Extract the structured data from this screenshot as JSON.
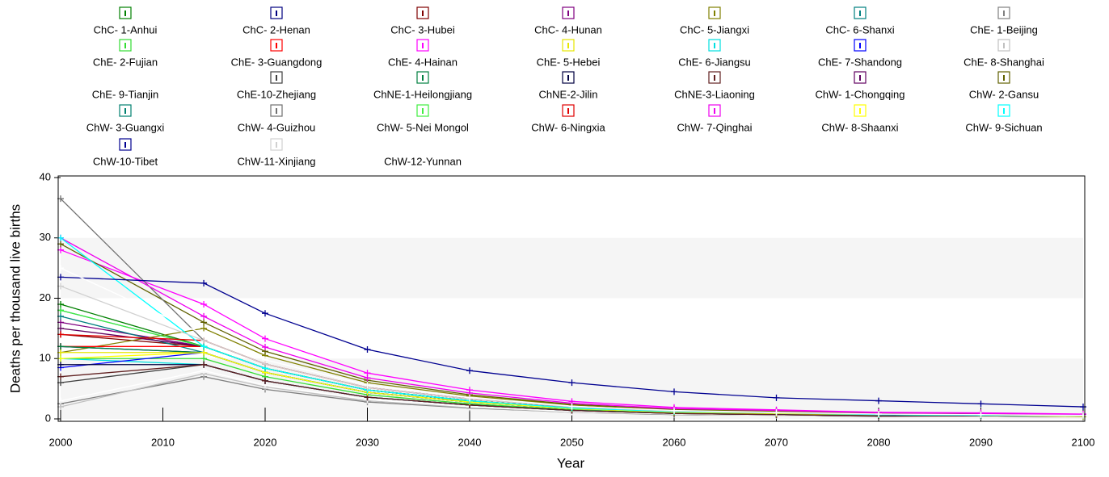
{
  "chart_data": {
    "type": "line",
    "x_label": "Year",
    "y_label": "Deaths per thousand live births",
    "xlim": [
      2000,
      2100
    ],
    "xticks": [
      2000,
      2010,
      2020,
      2030,
      2040,
      2050,
      2060,
      2070,
      2080,
      2090,
      2100
    ],
    "ylim": [
      0,
      40
    ],
    "yticks": [
      0,
      10,
      20,
      30,
      40
    ],
    "x": [
      2000,
      2014,
      2020,
      2030,
      2040,
      2050,
      2060,
      2070,
      2080,
      2090,
      2100
    ],
    "series": [
      {
        "name": "ChC- 1-Anhui",
        "color": "#008000",
        "values": [
          19,
          12,
          8.4,
          4.8,
          3,
          1.8,
          1.2,
          1,
          0.7,
          0.6,
          0.5
        ]
      },
      {
        "name": "ChC- 2-Henan",
        "color": "#000080",
        "values": [
          12,
          11,
          7.7,
          4.4,
          2.8,
          1.7,
          1.1,
          0.9,
          0.7,
          0.6,
          0.4
        ]
      },
      {
        "name": "ChC- 3-Hubei",
        "color": "#800000",
        "values": [
          14,
          12,
          8.4,
          4.8,
          3,
          1.8,
          1.2,
          1,
          0.7,
          0.6,
          0.5
        ]
      },
      {
        "name": "ChC- 4-Hunan",
        "color": "#800080",
        "values": [
          16,
          12,
          8.4,
          4.8,
          3,
          1.8,
          1.2,
          1,
          0.7,
          0.6,
          0.5
        ]
      },
      {
        "name": "ChC- 5-Jiangxi",
        "color": "#808000",
        "values": [
          11,
          15,
          10.5,
          6,
          3.8,
          2.3,
          1.5,
          1.2,
          0.9,
          0.8,
          0.6
        ]
      },
      {
        "name": "ChC- 6-Shanxi",
        "color": "#008080",
        "values": [
          17,
          11,
          7.7,
          4.4,
          2.8,
          1.7,
          1.1,
          0.9,
          0.7,
          0.6,
          0.4
        ]
      },
      {
        "name": "ChE- 1-Beijing",
        "color": "#808080",
        "values": [
          2.5,
          7,
          4.9,
          2.8,
          1.8,
          1.1,
          0.7,
          0.6,
          0.4,
          0.4,
          0.3
        ]
      },
      {
        "name": "ChE- 2-Fujian",
        "color": "#33dd33",
        "values": [
          10,
          10,
          7,
          4,
          2.5,
          1.5,
          1,
          0.8,
          0.6,
          0.5,
          0.4
        ]
      },
      {
        "name": "ChE- 3-Guangdong",
        "color": "#ff0000",
        "values": [
          12,
          12,
          8.4,
          4.8,
          3,
          1.8,
          1.2,
          1,
          0.7,
          0.6,
          0.5
        ]
      },
      {
        "name": "ChE- 4-Hainan",
        "color": "#ff00ff",
        "values": [
          28,
          19,
          13.3,
          7.6,
          4.8,
          2.9,
          1.9,
          1.5,
          1.1,
          1,
          0.8
        ]
      },
      {
        "name": "ChE- 5-Hebei",
        "color": "#e6e600",
        "values": [
          11,
          11,
          7.7,
          4.4,
          2.8,
          1.7,
          1.1,
          0.9,
          0.7,
          0.6,
          0.4
        ]
      },
      {
        "name": "ChE- 6-Jiangsu",
        "color": "#00e0e0",
        "values": [
          10,
          9,
          6.3,
          3.6,
          2.3,
          1.4,
          0.9,
          0.7,
          0.5,
          0.5,
          0.4
        ]
      },
      {
        "name": "ChE- 7-Shandong",
        "color": "#0000ff",
        "values": [
          8.5,
          11,
          7.7,
          4.4,
          2.8,
          1.7,
          1.1,
          0.9,
          0.7,
          0.6,
          0.4
        ]
      },
      {
        "name": "ChE- 8-Shanghai",
        "color": "#c0c0c0",
        "values": [
          2,
          7.5,
          5.3,
          3,
          1.9,
          1.1,
          0.8,
          0.6,
          0.5,
          0.4,
          0.3
        ]
      },
      {
        "name": "ChE- 9-Tianjin",
        "color": "#ffffff",
        "values": [
          3,
          8,
          5.6,
          3.2,
          2,
          1.2,
          0.8,
          0.6,
          0.5,
          0.4,
          0.3
        ]
      },
      {
        "name": "ChE-10-Zhejiang",
        "color": "#404040",
        "values": [
          6,
          9,
          6.3,
          3.6,
          2.3,
          1.4,
          0.9,
          0.7,
          0.5,
          0.5,
          0.4
        ]
      },
      {
        "name": "ChNE-1-Heilongjiang",
        "color": "#008040",
        "values": [
          12,
          11,
          7.7,
          4.4,
          2.8,
          1.7,
          1.1,
          0.9,
          0.7,
          0.6,
          0.4
        ]
      },
      {
        "name": "ChNE-2-Jilin",
        "color": "#000040",
        "values": [
          9,
          9,
          6.3,
          3.6,
          2.3,
          1.4,
          0.9,
          0.7,
          0.5,
          0.5,
          0.4
        ]
      },
      {
        "name": "ChNE-3-Liaoning",
        "color": "#602020",
        "values": [
          7,
          9,
          6.3,
          3.6,
          2.3,
          1.4,
          0.9,
          0.7,
          0.5,
          0.5,
          0.4
        ]
      },
      {
        "name": "ChW- 1-Chongqing",
        "color": "#600060",
        "values": [
          15,
          12,
          8.4,
          4.8,
          3,
          1.8,
          1.2,
          1,
          0.7,
          0.6,
          0.5
        ]
      },
      {
        "name": "ChW- 2-Gansu",
        "color": "#606000",
        "values": [
          29,
          16,
          11.2,
          6.4,
          4,
          2.4,
          1.6,
          1.3,
          1,
          0.8,
          0.6
        ]
      },
      {
        "name": "ChW- 3-Guangxi",
        "color": "#008070",
        "values": [
          18,
          12,
          8.4,
          4.8,
          3,
          1.8,
          1.2,
          1,
          0.7,
          0.6,
          0.5
        ]
      },
      {
        "name": "ChW- 4-Guizhou",
        "color": "#707070",
        "values": [
          36.5,
          13,
          9.1,
          5.2,
          3.3,
          2,
          1.3,
          1,
          0.8,
          0.7,
          0.5
        ]
      },
      {
        "name": "ChW- 5-Nei Mongol",
        "color": "#40ee40",
        "values": [
          18,
          12,
          8.4,
          4.8,
          3,
          1.8,
          1.2,
          1,
          0.7,
          0.6,
          0.5
        ]
      },
      {
        "name": "ChW- 6-Ningxia",
        "color": "#e00000",
        "values": [
          14,
          13,
          9.1,
          5.2,
          3.3,
          2,
          1.3,
          1,
          0.8,
          0.7,
          0.5
        ]
      },
      {
        "name": "ChW- 7-Qinghai",
        "color": "#ee00ee",
        "values": [
          30,
          17,
          11.9,
          6.8,
          4.3,
          2.6,
          1.7,
          1.4,
          1,
          0.9,
          0.7
        ]
      },
      {
        "name": "ChW- 8-Shaanxi",
        "color": "#ffff00",
        "values": [
          10,
          11,
          7.7,
          4.4,
          2.8,
          1.7,
          1.1,
          0.9,
          0.7,
          0.6,
          0.4
        ]
      },
      {
        "name": "ChW- 9-Sichuan",
        "color": "#00ffff",
        "values": [
          30,
          12,
          8.4,
          4.8,
          3,
          1.8,
          1.2,
          1,
          0.7,
          0.6,
          0.5
        ]
      },
      {
        "name": "ChW-10-Tibet",
        "color": "#000090",
        "values": [
          23.5,
          22.5,
          17.5,
          11.5,
          8,
          6,
          4.5,
          3.5,
          3,
          2.5,
          2
        ]
      },
      {
        "name": "ChW-11-Xinjiang",
        "color": "#d0d0d0",
        "values": [
          22,
          13,
          9.1,
          5.2,
          3.3,
          2,
          1.3,
          1,
          0.8,
          0.7,
          0.5
        ]
      },
      {
        "name": "ChW-12-Yunnan",
        "color": "#ffffff",
        "values": [
          25,
          14,
          9.8,
          5.6,
          3.5,
          2.1,
          1.4,
          1.1,
          0.8,
          0.7,
          0.6
        ]
      }
    ]
  }
}
